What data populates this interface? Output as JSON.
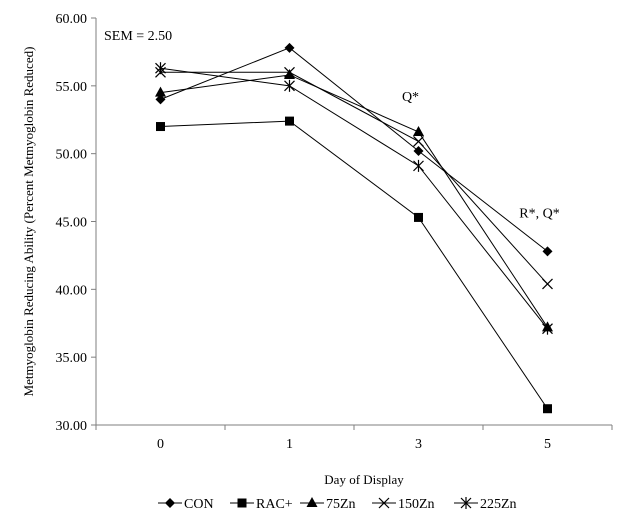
{
  "chart_data": {
    "type": "line",
    "xlabel": "Day of Display",
    "ylabel": "Metmyoglobin Reducing Ability (Percent Metmyoglobin Reduced)",
    "categories": [
      "0",
      "1",
      "3",
      "5"
    ],
    "ylim": [
      30,
      60
    ],
    "yticks": [
      "30.00",
      "35.00",
      "40.00",
      "45.00",
      "50.00",
      "55.00",
      "60.00"
    ],
    "grid": false,
    "legend_position": "bottom",
    "series": [
      {
        "name": "CON",
        "marker": "diamond",
        "values": [
          54.0,
          57.8,
          50.2,
          42.8
        ]
      },
      {
        "name": "RAC+",
        "marker": "square",
        "values": [
          52.0,
          52.4,
          45.3,
          31.2
        ]
      },
      {
        "name": "75Zn",
        "marker": "triangle",
        "values": [
          54.5,
          55.8,
          51.6,
          37.2
        ]
      },
      {
        "name": "150Zn",
        "marker": "x",
        "values": [
          56.0,
          56.0,
          50.9,
          40.4
        ]
      },
      {
        "name": "225Zn",
        "marker": "star",
        "values": [
          56.3,
          55.0,
          49.1,
          37.1
        ]
      }
    ],
    "annotations": [
      {
        "text": "SEM = 2.50"
      },
      {
        "text": "Q*",
        "category": "3",
        "y": 53.9
      },
      {
        "text": "R*, Q*",
        "category": "5",
        "y": 45.3
      }
    ],
    "colors": {
      "line": "#000000",
      "axis": "#7f7f7f"
    }
  }
}
